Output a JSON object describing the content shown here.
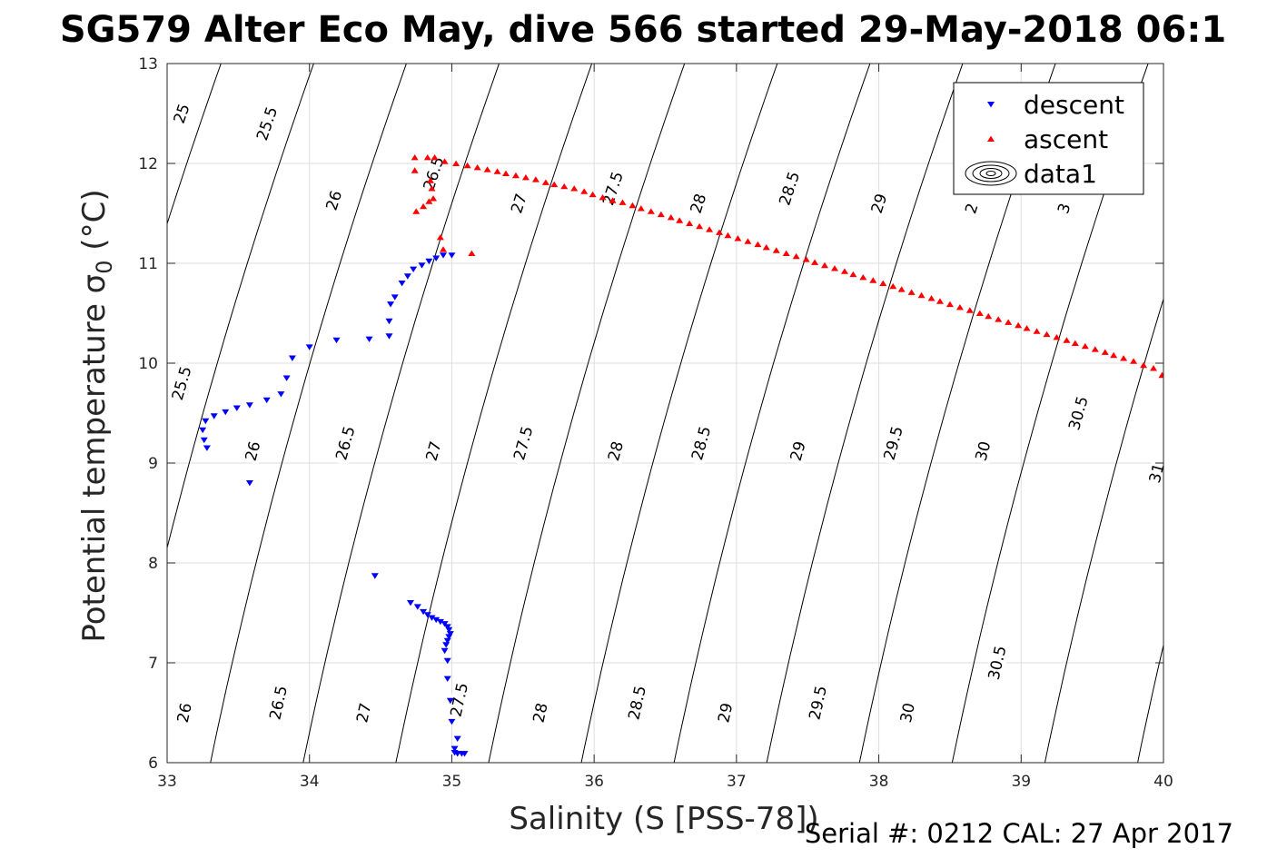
{
  "chart_data": {
    "type": "scatter",
    "title": "SG579 Alter Eco May, dive 566 started 29-May-2018 06:1",
    "xlabel": "Salinity (S [PSS-78])",
    "ylabel": "Potential temperature σ",
    "ylabel_sub": "0",
    "ylabel_unit": "(°C)",
    "footer": "Serial #: 0212  CAL: 27 Apr 2017",
    "xlim": [
      33,
      40
    ],
    "ylim": [
      6,
      13
    ],
    "xticks": [
      "33",
      "34",
      "35",
      "36",
      "37",
      "38",
      "39",
      "40"
    ],
    "yticks": [
      "6",
      "7",
      "8",
      "9",
      "10",
      "11",
      "12",
      "13"
    ],
    "grid": true,
    "legend_position": "top-right",
    "legend": [
      {
        "label": "descent",
        "marker": "triangle-down",
        "color": "#0000ff"
      },
      {
        "label": "ascent",
        "marker": "triangle-up",
        "color": "#ff0000"
      },
      {
        "label": "data1",
        "marker": "contour",
        "color": "#000000"
      }
    ],
    "contours": {
      "levels": [
        25,
        25.5,
        26,
        26.5,
        27,
        27.5,
        28,
        28.5,
        29,
        29.5,
        30,
        30.5,
        31
      ],
      "labels": [
        {
          "text": "25",
          "s": 33.1,
          "t": 12.5
        },
        {
          "text": "25.5",
          "s": 33.7,
          "t": 12.4
        },
        {
          "text": "26",
          "s": 34.17,
          "t": 11.63
        },
        {
          "text": "26.5",
          "s": 34.87,
          "t": 11.9
        },
        {
          "text": "27",
          "s": 35.47,
          "t": 11.6
        },
        {
          "text": "27.5",
          "s": 36.13,
          "t": 11.75
        },
        {
          "text": "28",
          "s": 36.73,
          "t": 11.6
        },
        {
          "text": "28.5",
          "s": 37.37,
          "t": 11.75
        },
        {
          "text": "29",
          "s": 38.0,
          "t": 11.6
        },
        {
          "text": "2",
          "s": 38.65,
          "t": 11.55
        },
        {
          "text": "3",
          "s": 39.3,
          "t": 11.55
        },
        {
          "text": "25.5",
          "s": 33.1,
          "t": 9.8
        },
        {
          "text": "26",
          "s": 33.6,
          "t": 9.12
        },
        {
          "text": "26.5",
          "s": 34.25,
          "t": 9.2
        },
        {
          "text": "27",
          "s": 34.87,
          "t": 9.12
        },
        {
          "text": "27.5",
          "s": 35.5,
          "t": 9.2
        },
        {
          "text": "28",
          "s": 36.15,
          "t": 9.12
        },
        {
          "text": "28.5",
          "s": 36.75,
          "t": 9.2
        },
        {
          "text": "29",
          "s": 37.43,
          "t": 9.12
        },
        {
          "text": "29.5",
          "s": 38.1,
          "t": 9.2
        },
        {
          "text": "30",
          "s": 38.73,
          "t": 9.12
        },
        {
          "text": "30.5",
          "s": 39.4,
          "t": 9.5
        },
        {
          "text": "31",
          "s": 39.95,
          "t": 8.9
        },
        {
          "text": "26",
          "s": 33.12,
          "t": 6.5
        },
        {
          "text": "26.5",
          "s": 33.78,
          "t": 6.6
        },
        {
          "text": "27",
          "s": 34.38,
          "t": 6.5
        },
        {
          "text": "27.5",
          "s": 35.05,
          "t": 6.63
        },
        {
          "text": "28",
          "s": 35.62,
          "t": 6.5
        },
        {
          "text": "28.5",
          "s": 36.3,
          "t": 6.6
        },
        {
          "text": "29",
          "s": 36.92,
          "t": 6.5
        },
        {
          "text": "29.5",
          "s": 37.57,
          "t": 6.6
        },
        {
          "text": "30",
          "s": 38.2,
          "t": 6.5
        },
        {
          "text": "30.5",
          "s": 38.83,
          "t": 7.0
        }
      ]
    },
    "series": [
      {
        "name": "descent",
        "marker": "triangle-down",
        "color": "#0000ff",
        "points": [
          [
            33.58,
            8.8
          ],
          [
            33.28,
            9.15
          ],
          [
            33.26,
            9.23
          ],
          [
            33.25,
            9.33
          ],
          [
            33.27,
            9.42
          ],
          [
            33.33,
            9.47
          ],
          [
            33.41,
            9.51
          ],
          [
            33.49,
            9.55
          ],
          [
            33.58,
            9.58
          ],
          [
            33.7,
            9.63
          ],
          [
            33.8,
            9.69
          ],
          [
            33.84,
            9.85
          ],
          [
            33.88,
            10.05
          ],
          [
            34.0,
            10.16
          ],
          [
            34.19,
            10.23
          ],
          [
            34.42,
            10.24
          ],
          [
            34.56,
            10.27
          ],
          [
            34.56,
            10.42
          ],
          [
            34.57,
            10.59
          ],
          [
            34.6,
            10.66
          ],
          [
            34.65,
            10.8
          ],
          [
            34.69,
            10.87
          ],
          [
            34.73,
            10.94
          ],
          [
            34.79,
            10.98
          ],
          [
            34.84,
            11.02
          ],
          [
            34.89,
            11.05
          ],
          [
            34.94,
            11.08
          ],
          [
            35.0,
            11.08
          ],
          [
            34.46,
            7.87
          ],
          [
            34.71,
            7.6
          ],
          [
            34.76,
            7.56
          ],
          [
            34.8,
            7.51
          ],
          [
            34.83,
            7.48
          ],
          [
            34.86,
            7.45
          ],
          [
            34.89,
            7.43
          ],
          [
            34.92,
            7.41
          ],
          [
            34.95,
            7.39
          ],
          [
            34.97,
            7.36
          ],
          [
            34.98,
            7.33
          ],
          [
            34.99,
            7.29
          ],
          [
            34.98,
            7.26
          ],
          [
            34.97,
            7.22
          ],
          [
            34.96,
            7.18
          ],
          [
            34.95,
            7.12
          ],
          [
            34.97,
            7.02
          ],
          [
            34.97,
            6.84
          ],
          [
            34.99,
            6.62
          ],
          [
            35.0,
            6.41
          ],
          [
            35.04,
            6.24
          ],
          [
            35.02,
            6.14
          ],
          [
            35.02,
            6.1
          ],
          [
            35.04,
            6.09
          ],
          [
            35.07,
            6.09
          ],
          [
            35.09,
            6.09
          ]
        ]
      },
      {
        "name": "ascent",
        "marker": "triangle-up",
        "color": "#ff0000",
        "points": [
          [
            34.75,
            11.52
          ],
          [
            34.8,
            11.57
          ],
          [
            34.84,
            11.62
          ],
          [
            34.87,
            11.65
          ],
          [
            34.86,
            11.75
          ],
          [
            34.85,
            11.83
          ],
          [
            34.74,
            11.93
          ],
          [
            34.74,
            12.06
          ],
          [
            34.83,
            12.06
          ],
          [
            34.88,
            12.06
          ],
          [
            34.92,
            11.26
          ],
          [
            34.94,
            11.14
          ],
          [
            35.14,
            11.1
          ],
          [
            34.95,
            12.02
          ],
          [
            35.03,
            12.0
          ],
          [
            35.11,
            11.98
          ],
          [
            35.18,
            11.96
          ],
          [
            35.25,
            11.94
          ],
          [
            35.32,
            11.92
          ],
          [
            35.38,
            11.9
          ],
          [
            35.45,
            11.88
          ],
          [
            35.52,
            11.86
          ],
          [
            35.59,
            11.84
          ],
          [
            35.66,
            11.81
          ],
          [
            35.72,
            11.79
          ],
          [
            35.79,
            11.77
          ],
          [
            35.86,
            11.75
          ],
          [
            35.93,
            11.72
          ],
          [
            35.99,
            11.69
          ],
          [
            36.06,
            11.66
          ],
          [
            36.13,
            11.63
          ],
          [
            36.2,
            11.61
          ],
          [
            36.27,
            11.58
          ],
          [
            36.33,
            11.55
          ],
          [
            36.4,
            11.52
          ],
          [
            36.47,
            11.49
          ],
          [
            36.54,
            11.46
          ],
          [
            36.6,
            11.43
          ],
          [
            36.67,
            11.4
          ],
          [
            36.74,
            11.37
          ],
          [
            36.81,
            11.34
          ],
          [
            36.88,
            11.31
          ],
          [
            36.94,
            11.28
          ],
          [
            37.01,
            11.25
          ],
          [
            37.08,
            11.22
          ],
          [
            37.15,
            11.19
          ],
          [
            37.21,
            11.16
          ],
          [
            37.28,
            11.13
          ],
          [
            37.35,
            11.1
          ],
          [
            37.42,
            11.07
          ],
          [
            37.49,
            11.04
          ],
          [
            37.55,
            11.01
          ],
          [
            37.62,
            10.98
          ],
          [
            37.69,
            10.95
          ],
          [
            37.76,
            10.92
          ],
          [
            37.82,
            10.89
          ],
          [
            37.89,
            10.86
          ],
          [
            37.96,
            10.83
          ],
          [
            38.03,
            10.8
          ],
          [
            38.1,
            10.77
          ],
          [
            38.16,
            10.74
          ],
          [
            38.23,
            10.71
          ],
          [
            38.3,
            10.68
          ],
          [
            38.37,
            10.65
          ],
          [
            38.43,
            10.62
          ],
          [
            38.5,
            10.59
          ],
          [
            38.57,
            10.56
          ],
          [
            38.64,
            10.53
          ],
          [
            38.71,
            10.5
          ],
          [
            38.77,
            10.47
          ],
          [
            38.84,
            10.44
          ],
          [
            38.91,
            10.41
          ],
          [
            38.98,
            10.38
          ],
          [
            39.04,
            10.35
          ],
          [
            39.11,
            10.32
          ],
          [
            39.18,
            10.29
          ],
          [
            39.25,
            10.26
          ],
          [
            39.32,
            10.23
          ],
          [
            39.38,
            10.2
          ],
          [
            39.45,
            10.17
          ],
          [
            39.52,
            10.14
          ],
          [
            39.59,
            10.11
          ],
          [
            39.65,
            10.08
          ],
          [
            39.72,
            10.05
          ],
          [
            39.79,
            10.02
          ],
          [
            39.86,
            9.98
          ],
          [
            39.93,
            9.95
          ],
          [
            39.99,
            9.88
          ]
        ]
      }
    ]
  }
}
